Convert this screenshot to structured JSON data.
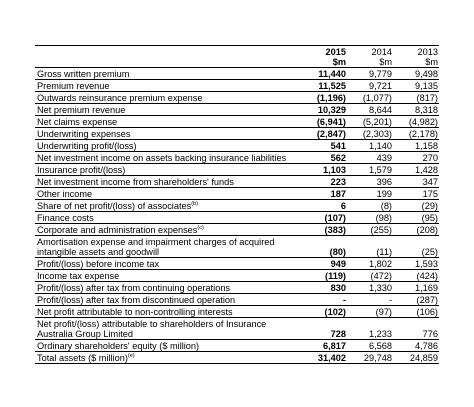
{
  "columns": {
    "years": [
      "2015",
      "2014",
      "2013"
    ],
    "units": [
      "$m",
      "$m",
      "$m"
    ]
  },
  "rows": [
    {
      "label": "Gross written premium",
      "sup": "",
      "v2015": "11,440",
      "v2014": "9,779",
      "v2013": "9,498"
    },
    {
      "label": "Premium revenue",
      "sup": "",
      "v2015": "11,525",
      "v2014": "9,721",
      "v2013": "9,135"
    },
    {
      "label": "Outwards reinsurance premium expense",
      "sup": "",
      "v2015": "(1,196)",
      "v2014": "(1,077)",
      "v2013": "(817)"
    },
    {
      "label": "Net premium revenue",
      "sup": "",
      "v2015": "10,329",
      "v2014": "8,644",
      "v2013": "8,318"
    },
    {
      "label": "Net claims expense",
      "sup": "",
      "v2015": "(6,941)",
      "v2014": "(5,201)",
      "v2013": "(4,982)"
    },
    {
      "label": "Underwriting expenses",
      "sup": "",
      "v2015": "(2,847)",
      "v2014": "(2,303)",
      "v2013": "(2,178)"
    },
    {
      "label": "Underwriting profit/(loss)",
      "sup": "",
      "v2015": "541",
      "v2014": "1,140",
      "v2013": "1,158"
    },
    {
      "label": "Net investment income on assets backing insurance liabilities",
      "sup": "",
      "v2015": "562",
      "v2014": "439",
      "v2013": "270"
    },
    {
      "label": "Insurance profit/(loss)",
      "sup": "",
      "v2015": "1,103",
      "v2014": "1,579",
      "v2013": "1,428"
    },
    {
      "label": "Net investment income from shareholders' funds",
      "sup": "",
      "v2015": "223",
      "v2014": "396",
      "v2013": "347"
    },
    {
      "label": "Other income",
      "sup": "",
      "v2015": "187",
      "v2014": "199",
      "v2013": "175"
    },
    {
      "label": "Share of net profit/(loss) of associates",
      "sup": "(b)",
      "v2015": "6",
      "v2014": "(8)",
      "v2013": "(29)"
    },
    {
      "label": "Finance costs",
      "sup": "",
      "v2015": "(107)",
      "v2014": "(98)",
      "v2013": "(95)"
    },
    {
      "label": "Corporate and administration expenses",
      "sup": "(c)",
      "v2015": "(383)",
      "v2014": "(255)",
      "v2013": "(208)"
    },
    {
      "label": "Amortisation expense and impairment charges of acquired intangible assets and goodwill",
      "sup": "(d)",
      "v2015": "(80)",
      "v2014": "(11)",
      "v2013": "(25)",
      "tall": true
    },
    {
      "label": "Profit/(loss) before income tax",
      "sup": "",
      "v2015": "949",
      "v2014": "1,802",
      "v2013": "1,593"
    },
    {
      "label": "Income tax expense",
      "sup": "",
      "v2015": "(119)",
      "v2014": "(472)",
      "v2013": "(424)"
    },
    {
      "label": "Profit/(loss) after tax from continuing operations",
      "sup": "",
      "v2015": "830",
      "v2014": "1,330",
      "v2013": "1,169"
    },
    {
      "label": "Profit/(loss) after tax from discontinued operation",
      "sup": "",
      "v2015": "-",
      "v2014": "-",
      "v2013": "(287)"
    },
    {
      "label": "Net profit attributable to non-controlling interests",
      "sup": "",
      "v2015": "(102)",
      "v2014": "(97)",
      "v2013": "(106)"
    },
    {
      "label": "Net profit/(loss) attributable to shareholders of Insurance Australia Group Limited",
      "sup": "",
      "v2015": "728",
      "v2014": "1,233",
      "v2013": "776",
      "tall": true
    },
    {
      "label": "Ordinary shareholders' equity ($ million)",
      "sup": "",
      "v2015": "6,817",
      "v2014": "6,568",
      "v2013": "4,786"
    },
    {
      "label": "Total assets ($ million)",
      "sup": "(e)",
      "v2015": "31,402",
      "v2014": "29,748",
      "v2013": "24,859"
    }
  ]
}
